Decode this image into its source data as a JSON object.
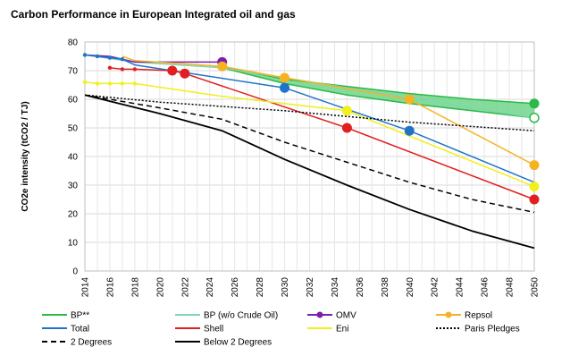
{
  "chart_data": {
    "type": "line",
    "title": "Carbon Performance in European Integrated oil and gas",
    "ylabel": "CO2e intensity (tCO2 / TJ)",
    "xlabel": "",
    "xlim": [
      2014,
      2050
    ],
    "ylim": [
      0,
      80
    ],
    "yticks": [
      0,
      10,
      20,
      30,
      40,
      50,
      60,
      70,
      80
    ],
    "xticks": [
      2014,
      2016,
      2018,
      2020,
      2022,
      2024,
      2026,
      2028,
      2030,
      2032,
      2034,
      2036,
      2038,
      2040,
      2042,
      2044,
      2046,
      2048,
      2050
    ],
    "grid": true,
    "legend_position": "bottom",
    "band": {
      "name": "BP**",
      "color": "#2db84a",
      "fill": "#6fd58a",
      "upper": [
        [
          2025,
          71.5
        ],
        [
          2030,
          67
        ],
        [
          2035,
          64.5
        ],
        [
          2040,
          62
        ],
        [
          2045,
          60
        ],
        [
          2050,
          58.5
        ]
      ],
      "lower": [
        [
          2025,
          71
        ],
        [
          2030,
          65.5
        ],
        [
          2035,
          61.5
        ],
        [
          2040,
          58.5
        ],
        [
          2045,
          56
        ],
        [
          2050,
          53.5
        ]
      ]
    },
    "series": [
      {
        "name": "BP (w/o Crude Oil)",
        "color": "#7fd6b0",
        "dash": "solid",
        "width": 1.5,
        "points": [
          [
            2014,
            75.5
          ],
          [
            2018,
            73
          ],
          [
            2025,
            71
          ],
          [
            2050,
            53.5
          ]
        ],
        "markers": [],
        "hollow_markers": [
          [
            2050,
            53.5
          ]
        ],
        "filled_end_marker": [
          2050,
          58.5
        ]
      },
      {
        "name": "OMV",
        "color": "#7a1fa8",
        "dash": "solid",
        "width": 1.5,
        "points": [
          [
            2014,
            75.5
          ],
          [
            2016,
            75
          ],
          [
            2017,
            74
          ],
          [
            2018,
            73
          ],
          [
            2025,
            73
          ]
        ],
        "markers": [
          [
            2025,
            73
          ]
        ]
      },
      {
        "name": "Repsol",
        "color": "#f5b324",
        "dash": "solid",
        "width": 1.5,
        "points": [
          [
            2017,
            75
          ],
          [
            2018,
            73.5
          ],
          [
            2025,
            71.5
          ],
          [
            2030,
            67.5
          ],
          [
            2040,
            60
          ],
          [
            2050,
            37
          ]
        ],
        "markers": [
          [
            2025,
            71.5
          ],
          [
            2030,
            67.5
          ],
          [
            2040,
            60
          ],
          [
            2050,
            37
          ]
        ]
      },
      {
        "name": "Total",
        "color": "#1f74c9",
        "dash": "solid",
        "width": 1.5,
        "points": [
          [
            2014,
            75.5
          ],
          [
            2015,
            75
          ],
          [
            2016,
            74.5
          ],
          [
            2017,
            74
          ],
          [
            2018,
            72
          ],
          [
            2030,
            64
          ],
          [
            2040,
            49
          ],
          [
            2050,
            31
          ]
        ],
        "markers": [
          [
            2030,
            64
          ],
          [
            2040,
            49
          ]
        ],
        "small_markers": [
          [
            2014,
            75.5
          ],
          [
            2015,
            75
          ],
          [
            2016,
            74.5
          ],
          [
            2017,
            74
          ]
        ]
      },
      {
        "name": "Shell",
        "color": "#e02020",
        "dash": "solid",
        "width": 1.5,
        "points": [
          [
            2016,
            71
          ],
          [
            2017,
            70.5
          ],
          [
            2018,
            70.5
          ],
          [
            2021,
            70
          ],
          [
            2022,
            69
          ],
          [
            2035,
            50
          ],
          [
            2050,
            25
          ]
        ],
        "markers": [
          [
            2021,
            70
          ],
          [
            2022,
            69
          ],
          [
            2035,
            50
          ],
          [
            2050,
            25
          ]
        ],
        "small_markers": [
          [
            2016,
            71
          ],
          [
            2017,
            70.5
          ],
          [
            2018,
            70.5
          ]
        ]
      },
      {
        "name": "Eni",
        "color": "#f2ef1a",
        "dash": "solid",
        "width": 1.5,
        "points": [
          [
            2014,
            66
          ],
          [
            2015,
            65.5
          ],
          [
            2016,
            65.5
          ],
          [
            2017,
            65.5
          ],
          [
            2018,
            65.5
          ],
          [
            2025,
            61
          ],
          [
            2035,
            56
          ],
          [
            2050,
            29.5
          ]
        ],
        "markers": [
          [
            2035,
            56
          ],
          [
            2050,
            29.5
          ]
        ],
        "small_markers": [
          [
            2014,
            66
          ],
          [
            2015,
            65.5
          ],
          [
            2016,
            65.5
          ],
          [
            2017,
            65.5
          ],
          [
            2018,
            65.5
          ]
        ]
      },
      {
        "name": "Paris Pledges",
        "color": "#000000",
        "dash": "dot",
        "width": 1.5,
        "points": [
          [
            2014,
            61.5
          ],
          [
            2020,
            59
          ],
          [
            2030,
            56
          ],
          [
            2040,
            52
          ],
          [
            2050,
            49
          ]
        ],
        "markers": []
      },
      {
        "name": "2 Degrees",
        "color": "#000000",
        "dash": "dash",
        "width": 1.5,
        "points": [
          [
            2014,
            61.5
          ],
          [
            2020,
            57
          ],
          [
            2025,
            53
          ],
          [
            2030,
            45
          ],
          [
            2035,
            38
          ],
          [
            2040,
            31
          ],
          [
            2045,
            25
          ],
          [
            2050,
            20.5
          ]
        ],
        "markers": []
      },
      {
        "name": "Below 2 Degrees",
        "color": "#000000",
        "dash": "solid",
        "width": 1.8,
        "points": [
          [
            2014,
            61.5
          ],
          [
            2020,
            55
          ],
          [
            2025,
            49
          ],
          [
            2030,
            39
          ],
          [
            2035,
            30
          ],
          [
            2040,
            21.5
          ],
          [
            2045,
            14
          ],
          [
            2050,
            8
          ]
        ],
        "markers": []
      }
    ],
    "legend": [
      {
        "label": "BP**",
        "color": "#2db84a",
        "dash": "solid",
        "marker": false
      },
      {
        "label": "BP (w/o Crude Oil)",
        "color": "#7fd6b0",
        "dash": "solid",
        "marker": false
      },
      {
        "label": "OMV",
        "color": "#7a1fa8",
        "dash": "solid",
        "marker": true
      },
      {
        "label": "Repsol",
        "color": "#f5b324",
        "dash": "solid",
        "marker": true
      },
      {
        "label": "Total",
        "color": "#1f74c9",
        "dash": "solid",
        "marker": false
      },
      {
        "label": "Shell",
        "color": "#e02020",
        "dash": "solid",
        "marker": false
      },
      {
        "label": "Eni",
        "color": "#f2ef1a",
        "dash": "solid",
        "marker": false
      },
      {
        "label": "Paris Pledges",
        "color": "#000000",
        "dash": "dot",
        "marker": false
      },
      {
        "label": "2 Degrees",
        "color": "#000000",
        "dash": "dash",
        "marker": false
      },
      {
        "label": "Below 2 Degrees",
        "color": "#000000",
        "dash": "solid",
        "marker": false
      }
    ]
  }
}
